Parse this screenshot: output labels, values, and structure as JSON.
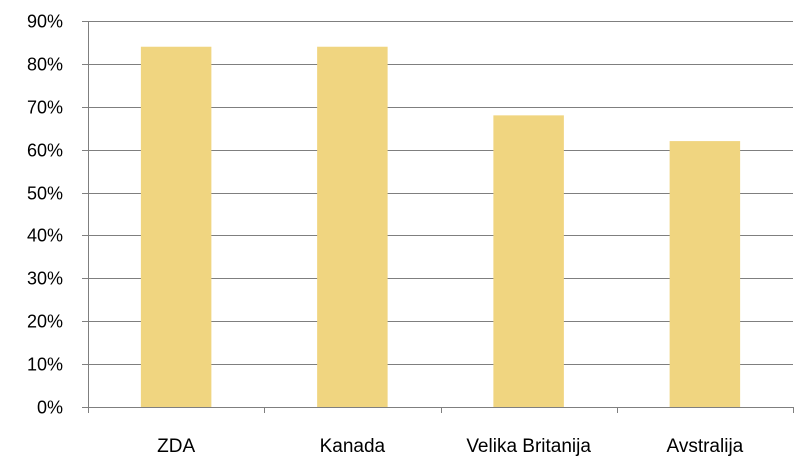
{
  "chart_data": {
    "type": "bar",
    "categories": [
      "ZDA",
      "Kanada",
      "Velika Britanija",
      "Avstralija"
    ],
    "values": [
      84,
      84,
      68,
      62
    ],
    "ylim": [
      0,
      90
    ],
    "yticks": [
      0,
      10,
      20,
      30,
      40,
      50,
      60,
      70,
      80,
      90
    ],
    "ytick_labels": [
      "0%",
      "10%",
      "20%",
      "30%",
      "40%",
      "50%",
      "60%",
      "70%",
      "80%",
      "90%"
    ],
    "title": "",
    "xlabel": "",
    "ylabel": "",
    "grid": true,
    "legend": "none",
    "bar_color": "#f0d580",
    "grid_color": "#7f7f7f"
  }
}
